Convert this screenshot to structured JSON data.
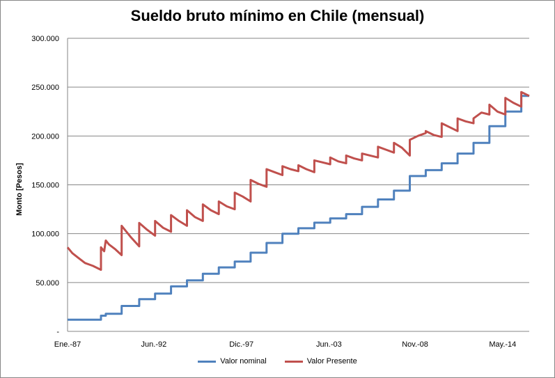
{
  "chart_data": {
    "type": "line",
    "title": "Sueldo bruto mínimo en Chile (mensual)",
    "xlabel": "",
    "ylabel": "Monto [Pesos]",
    "ylim": [
      0,
      300000
    ],
    "xlim": [
      1987.0,
      2016.0
    ],
    "grid": true,
    "legend_position": "bottom",
    "y_ticks": [
      0,
      50000,
      100000,
      150000,
      200000,
      250000,
      300000
    ],
    "y_tick_labels": [
      "-",
      "50.000",
      "100.000",
      "150.000",
      "200.000",
      "250.000",
      "300.000"
    ],
    "x_ticks": [
      1987.0,
      1992.42,
      1997.92,
      2003.42,
      2008.83,
      2014.33
    ],
    "x_tick_labels": [
      "Ene.-87",
      "Jun.-92",
      "Dic.-97",
      "Jun.-03",
      "Nov.-08",
      "May.-14"
    ],
    "series": [
      {
        "name": "Valor nominal",
        "color": "#4F81BD",
        "x": [
          1987.0,
          1989.1,
          1989.1,
          1989.4,
          1989.4,
          1990.4,
          1990.4,
          1991.5,
          1991.5,
          1992.5,
          1992.5,
          1993.5,
          1993.5,
          1994.5,
          1994.5,
          1995.5,
          1995.5,
          1996.5,
          1996.5,
          1997.5,
          1997.5,
          1998.5,
          1998.5,
          1999.5,
          1999.5,
          2000.5,
          2000.5,
          2001.5,
          2001.5,
          2002.5,
          2002.5,
          2003.5,
          2003.5,
          2004.5,
          2004.5,
          2005.5,
          2005.5,
          2006.5,
          2006.5,
          2007.5,
          2007.5,
          2008.5,
          2008.5,
          2009.5,
          2009.5,
          2010.5,
          2010.5,
          2011.5,
          2011.5,
          2012.5,
          2012.5,
          2013.5,
          2013.5,
          2014.5,
          2014.5,
          2015.5,
          2015.5,
          2016.0
        ],
        "values": [
          12000,
          12000,
          16000,
          16000,
          18000,
          18000,
          26000,
          26000,
          33000,
          33000,
          38600,
          38600,
          46000,
          46000,
          52150,
          52150,
          58900,
          58900,
          65500,
          65500,
          71400,
          71400,
          80500,
          80500,
          90500,
          90500,
          100000,
          100000,
          105500,
          105500,
          111200,
          111200,
          115648,
          115648,
          120000,
          120000,
          127500,
          127500,
          135000,
          135000,
          144000,
          144000,
          159000,
          159000,
          165000,
          165000,
          172000,
          172000,
          182000,
          182000,
          193000,
          193000,
          210000,
          210000,
          225000,
          225000,
          241000,
          241000
        ]
      },
      {
        "name": "Valor Presente",
        "color": "#C0504D",
        "x": [
          1987.0,
          1987.3,
          1987.7,
          1988.1,
          1988.6,
          1989.1,
          1989.1,
          1989.3,
          1989.4,
          1989.6,
          1990.0,
          1990.4,
          1990.4,
          1990.7,
          1991.0,
          1991.5,
          1991.5,
          1992.0,
          1992.5,
          1992.5,
          1993.0,
          1993.5,
          1993.5,
          1994.0,
          1994.5,
          1994.5,
          1995.0,
          1995.5,
          1995.5,
          1996.0,
          1996.5,
          1996.5,
          1997.0,
          1997.5,
          1997.5,
          1998.0,
          1998.5,
          1998.5,
          1999.0,
          1999.5,
          1999.5,
          2000.0,
          2000.5,
          2000.5,
          2001.0,
          2001.5,
          2001.5,
          2002.0,
          2002.5,
          2002.5,
          2003.0,
          2003.5,
          2003.5,
          2004.0,
          2004.5,
          2004.5,
          2005.0,
          2005.5,
          2005.5,
          2006.0,
          2006.5,
          2006.5,
          2007.0,
          2007.5,
          2007.5,
          2008.0,
          2008.5,
          2008.5,
          2009.0,
          2009.5,
          2009.5,
          2010.0,
          2010.5,
          2010.5,
          2011.0,
          2011.5,
          2011.5,
          2012.0,
          2012.5,
          2012.5,
          2013.0,
          2013.5,
          2013.5,
          2014.0,
          2014.5,
          2014.5,
          2015.0,
          2015.5,
          2015.5,
          2016.0
        ],
        "values": [
          86000,
          80000,
          75000,
          70000,
          67000,
          63000,
          86000,
          82000,
          93000,
          89000,
          84000,
          78000,
          108000,
          102000,
          96000,
          87000,
          111000,
          104000,
          98000,
          113000,
          106000,
          102000,
          119000,
          113000,
          108000,
          124000,
          117000,
          113000,
          130000,
          124000,
          120000,
          133000,
          128000,
          125000,
          142000,
          138000,
          133000,
          155000,
          151000,
          148000,
          166000,
          163000,
          160000,
          169000,
          166000,
          164000,
          170000,
          166000,
          163000,
          175000,
          173000,
          171000,
          178000,
          174000,
          172000,
          180000,
          177000,
          175000,
          182000,
          180000,
          178000,
          189000,
          186000,
          183000,
          193000,
          188000,
          180000,
          196000,
          200000,
          203000,
          205000,
          201000,
          199000,
          213000,
          209000,
          205000,
          218000,
          215000,
          213000,
          218000,
          224000,
          222000,
          232000,
          225000,
          222000,
          239000,
          234000,
          230000,
          245000,
          241000
        ]
      }
    ]
  }
}
